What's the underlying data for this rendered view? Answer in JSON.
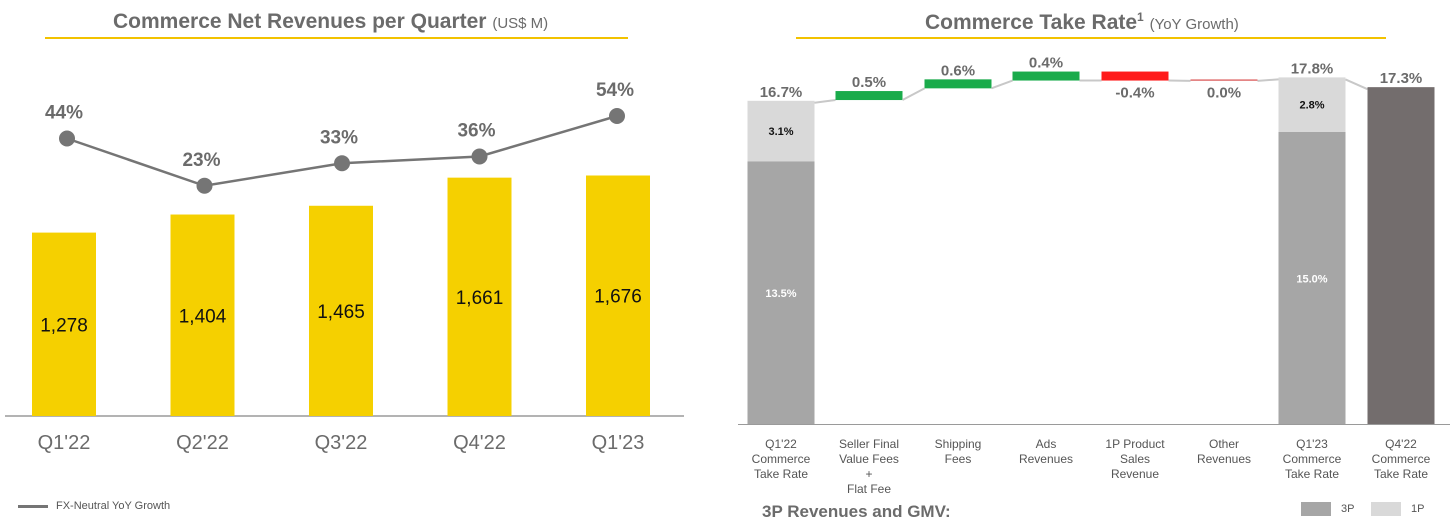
{
  "left": {
    "title": "Commerce Net Revenues per Quarter",
    "title_unit": "(US$ M)",
    "legend_label": "FX-Neutral YoY Growth"
  },
  "right": {
    "title": "Commerce Take Rate",
    "title_sup": "1",
    "title_sub": "(YoY Growth)",
    "footer": "3P Revenues and GMV:"
  },
  "chart_data": [
    {
      "type": "bar",
      "title": "Commerce Net Revenues per Quarter (US$ M)",
      "categories": [
        "Q1'22",
        "Q2'22",
        "Q3'22",
        "Q4'22",
        "Q1'23"
      ],
      "series": [
        {
          "values": [
            1278,
            1404,
            1465,
            1661,
            1676
          ],
          "labels": [
            "1,278",
            "1,404",
            "1,465",
            "1,661",
            "1,676"
          ],
          "color": "#f5d000"
        },
        {
          "name": "FX-Neutral YoY Growth",
          "type": "line",
          "values": [
            44,
            23,
            33,
            36,
            54
          ],
          "labels": [
            "44%",
            "23%",
            "33%",
            "36%",
            "54%"
          ],
          "color": "#757575"
        }
      ]
    },
    {
      "type": "bar",
      "title": "Commerce Take Rate (YoY Growth)",
      "categories": [
        "Q1'22\nCommerce\nTake Rate",
        "Seller Final\nValue Fees\n+\nFlat Fee",
        "Shipping\nFees",
        "Ads\nRevenues",
        "1P Product\nSales\nRevenue",
        "Other\nRevenues",
        "Q1'23\nCommerce\nTake Rate",
        "Q4'22\nCommerce\nTake Rate"
      ],
      "waterfall": [
        {
          "kind": "stack",
          "segments": [
            {
              "name": "3P",
              "value": 13.5,
              "label": "13.5%"
            },
            {
              "name": "1P",
              "value": 3.1,
              "label": "3.1%"
            }
          ],
          "total_label": "16.7%"
        },
        {
          "kind": "delta",
          "value": 0.5,
          "label": "0.5%",
          "color": "#1aab4b"
        },
        {
          "kind": "delta",
          "value": 0.6,
          "label": "0.6%",
          "color": "#1aab4b"
        },
        {
          "kind": "delta",
          "value": 0.4,
          "label": "0.4%",
          "color": "#1aab4b"
        },
        {
          "kind": "delta",
          "value": -0.4,
          "label": "-0.4%",
          "color": "#ff1a1a"
        },
        {
          "kind": "delta",
          "value": 0.0,
          "label": "0.0%",
          "color": "#e07070"
        },
        {
          "kind": "stack",
          "segments": [
            {
              "name": "3P",
              "value": 15.0,
              "label": "15.0%"
            },
            {
              "name": "1P",
              "value": 2.8,
              "label": "2.8%"
            }
          ],
          "total_label": "17.8%"
        },
        {
          "kind": "total",
          "value": 17.3,
          "label": "17.3%",
          "color": "#736d6d"
        }
      ],
      "legend": [
        {
          "name": "3P",
          "color": "#a6a6a6"
        },
        {
          "name": "1P",
          "color": "#d9d9d9"
        }
      ]
    }
  ]
}
